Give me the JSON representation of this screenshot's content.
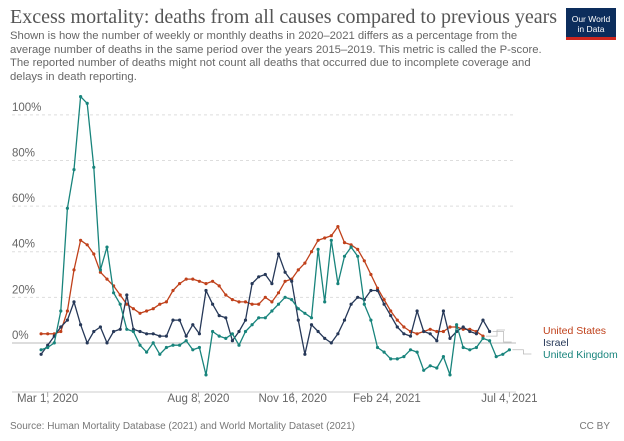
{
  "header": {
    "title": "Excess mortality: deaths from all causes compared to previous years",
    "subtitle": "Shown is how the number of weekly or monthly deaths in 2020–2021 differs as a percentage from the average number of deaths in the same period over the years 2015–2019. This metric is called the P-score. The reported number of deaths might not count all deaths that occurred due to incomplete coverage and delays in death reporting.",
    "logo_line1": "Our World",
    "logo_line2": "in Data"
  },
  "footer": {
    "source": "Source: Human Mortality Database (2021) and World Mortality Dataset (2021)",
    "license": "CC BY"
  },
  "chart_data": {
    "type": "line",
    "y_ticks": [
      0,
      20,
      40,
      60,
      80,
      100
    ],
    "y_tick_labels": [
      "0%",
      "20%",
      "40%",
      "60%",
      "80%",
      "100%"
    ],
    "ylim": [
      -18,
      110
    ],
    "xlim": [
      "2020-02-24",
      "2021-07-11"
    ],
    "x_ticks": [
      "2020-03-01",
      "2020-08-08",
      "2020-11-16",
      "2021-02-24",
      "2021-07-04"
    ],
    "x_tick_labels": [
      "Mar 1, 2020",
      "Aug 8, 2020",
      "Nov 16, 2020",
      "Feb 24, 2021",
      "Jul 4, 2021"
    ],
    "grid": true,
    "legend": "right, labels at line ends",
    "series": [
      {
        "name": "United States",
        "color": "#c0411b",
        "x": [
          "2020-02-23",
          "2020-03-01",
          "2020-03-08",
          "2020-03-15",
          "2020-03-22",
          "2020-03-29",
          "2020-04-05",
          "2020-04-12",
          "2020-04-19",
          "2020-04-26",
          "2020-05-03",
          "2020-05-10",
          "2020-05-17",
          "2020-05-24",
          "2020-05-31",
          "2020-06-07",
          "2020-06-14",
          "2020-06-21",
          "2020-06-28",
          "2020-07-05",
          "2020-07-12",
          "2020-07-19",
          "2020-07-26",
          "2020-08-02",
          "2020-08-09",
          "2020-08-16",
          "2020-08-23",
          "2020-08-30",
          "2020-09-06",
          "2020-09-13",
          "2020-09-20",
          "2020-09-27",
          "2020-10-04",
          "2020-10-11",
          "2020-10-18",
          "2020-10-25",
          "2020-11-01",
          "2020-11-08",
          "2020-11-15",
          "2020-11-22",
          "2020-11-29",
          "2020-12-06",
          "2020-12-13",
          "2020-12-20",
          "2020-12-27",
          "2021-01-03",
          "2021-01-10",
          "2021-01-17",
          "2021-01-24",
          "2021-01-31",
          "2021-02-07",
          "2021-02-14",
          "2021-02-21",
          "2021-02-28",
          "2021-03-07",
          "2021-03-14",
          "2021-03-21",
          "2021-03-28",
          "2021-04-04",
          "2021-04-11",
          "2021-04-18",
          "2021-04-25",
          "2021-05-02",
          "2021-05-09",
          "2021-05-16",
          "2021-05-23",
          "2021-05-30",
          "2021-06-06"
        ],
        "values": [
          4,
          4,
          4,
          5,
          14,
          32,
          45,
          43,
          39,
          31,
          28,
          25,
          21,
          17,
          15,
          13,
          14,
          15,
          17,
          18,
          23,
          26,
          28,
          28,
          27,
          26,
          27,
          25,
          21,
          19,
          18,
          18,
          17,
          17,
          20,
          18,
          22,
          27,
          28,
          32,
          35,
          40,
          45,
          46,
          47,
          51,
          44,
          43,
          41,
          36,
          30,
          24,
          19,
          14,
          10,
          7,
          5,
          4,
          5,
          6,
          5,
          5,
          7,
          7,
          6,
          6,
          5,
          3
        ]
      },
      {
        "name": "Israel",
        "color": "#263858",
        "x": [
          "2020-02-23",
          "2020-03-01",
          "2020-03-08",
          "2020-03-15",
          "2020-03-22",
          "2020-03-29",
          "2020-04-05",
          "2020-04-12",
          "2020-04-19",
          "2020-04-26",
          "2020-05-03",
          "2020-05-10",
          "2020-05-17",
          "2020-05-24",
          "2020-05-31",
          "2020-06-07",
          "2020-06-14",
          "2020-06-21",
          "2020-06-28",
          "2020-07-05",
          "2020-07-12",
          "2020-07-19",
          "2020-07-26",
          "2020-08-02",
          "2020-08-09",
          "2020-08-16",
          "2020-08-23",
          "2020-08-30",
          "2020-09-06",
          "2020-09-13",
          "2020-09-20",
          "2020-09-27",
          "2020-10-04",
          "2020-10-11",
          "2020-10-18",
          "2020-10-25",
          "2020-11-01",
          "2020-11-08",
          "2020-11-15",
          "2020-11-22",
          "2020-11-29",
          "2020-12-06",
          "2020-12-13",
          "2020-12-20",
          "2020-12-27",
          "2021-01-03",
          "2021-01-10",
          "2021-01-17",
          "2021-01-24",
          "2021-01-31",
          "2021-02-07",
          "2021-02-14",
          "2021-02-21",
          "2021-02-28",
          "2021-03-07",
          "2021-03-14",
          "2021-03-21",
          "2021-03-28",
          "2021-04-04",
          "2021-04-11",
          "2021-04-18",
          "2021-04-25",
          "2021-05-02",
          "2021-05-09",
          "2021-05-16",
          "2021-05-23",
          "2021-05-30",
          "2021-06-06",
          "2021-06-13"
        ],
        "values": [
          -5,
          -1,
          3,
          7,
          10,
          18,
          8,
          0,
          5,
          7,
          0,
          5,
          6,
          21,
          6,
          5,
          4,
          4,
          3,
          3,
          10,
          10,
          3,
          8,
          4,
          23,
          17,
          12,
          11,
          1,
          5,
          10,
          26,
          29,
          30,
          26,
          39,
          31,
          27,
          10,
          -5,
          8,
          5,
          2,
          0,
          4,
          10,
          17,
          20,
          19,
          23,
          23,
          17,
          12,
          7,
          4,
          3,
          14,
          5,
          4,
          1,
          14,
          2,
          5,
          7,
          5,
          4,
          10,
          5
        ]
      },
      {
        "name": "United Kingdom",
        "color": "#18847c",
        "x": [
          "2020-02-23",
          "2020-03-01",
          "2020-03-08",
          "2020-03-15",
          "2020-03-22",
          "2020-03-29",
          "2020-04-05",
          "2020-04-12",
          "2020-04-19",
          "2020-04-26",
          "2020-05-03",
          "2020-05-10",
          "2020-05-17",
          "2020-05-24",
          "2020-05-31",
          "2020-06-07",
          "2020-06-14",
          "2020-06-21",
          "2020-06-28",
          "2020-07-05",
          "2020-07-12",
          "2020-07-19",
          "2020-07-26",
          "2020-08-02",
          "2020-08-09",
          "2020-08-16",
          "2020-08-23",
          "2020-08-30",
          "2020-09-06",
          "2020-09-13",
          "2020-09-20",
          "2020-09-27",
          "2020-10-04",
          "2020-10-11",
          "2020-10-18",
          "2020-10-25",
          "2020-11-01",
          "2020-11-08",
          "2020-11-15",
          "2020-11-22",
          "2020-11-29",
          "2020-12-06",
          "2020-12-13",
          "2020-12-20",
          "2020-12-27",
          "2021-01-03",
          "2021-01-10",
          "2021-01-17",
          "2021-01-24",
          "2021-01-31",
          "2021-02-07",
          "2021-02-14",
          "2021-02-21",
          "2021-02-28",
          "2021-03-07",
          "2021-03-14",
          "2021-03-21",
          "2021-03-28",
          "2021-04-04",
          "2021-04-11",
          "2021-04-18",
          "2021-04-25",
          "2021-05-02",
          "2021-05-09",
          "2021-05-16",
          "2021-05-23",
          "2021-05-30",
          "2021-06-06",
          "2021-06-13",
          "2021-06-20",
          "2021-06-27",
          "2021-07-04"
        ],
        "values": [
          -3,
          -2,
          0,
          14,
          59,
          76,
          108,
          105,
          77,
          32,
          42,
          22,
          17,
          6,
          5,
          -1,
          -4,
          0,
          -5,
          -2,
          -1,
          -1,
          1,
          -3,
          -2,
          -14,
          5,
          3,
          2,
          4,
          -1,
          5,
          8,
          11,
          11,
          14,
          17,
          20,
          19,
          15,
          13,
          11,
          41,
          18,
          45,
          26,
          38,
          42,
          38,
          17,
          10,
          -2,
          -4,
          -7,
          -7,
          -6,
          -3,
          -4,
          -12,
          -10,
          -11,
          -6,
          -14,
          8,
          -2,
          -3,
          -2,
          2,
          1,
          -6,
          -5,
          -3
        ]
      }
    ]
  }
}
